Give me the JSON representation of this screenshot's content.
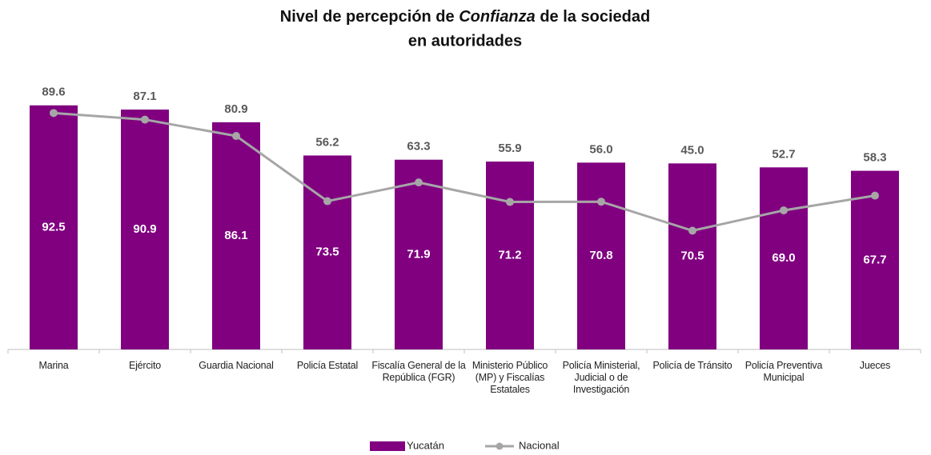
{
  "chart_data": {
    "type": "bar",
    "title": [
      "Nivel de percepción de",
      "Confianza",
      "de la sociedad",
      "en autoridades"
    ],
    "categories": [
      "Marina",
      "Ejército",
      "Guardia Nacional",
      "Policía Estatal",
      "Fiscalía General de la República (FGR)",
      "Ministerio Público (MP) y Fiscalías Estatales",
      "Policía Ministerial, Judicial o de Investigación",
      "Policía de Tránsito",
      "Policía Preventiva Municipal",
      "Jueces"
    ],
    "series": [
      {
        "name": "Yucatán",
        "type": "bar",
        "color": "#800080",
        "values": [
          92.5,
          90.9,
          86.1,
          73.5,
          71.9,
          71.2,
          70.8,
          70.5,
          69.0,
          67.7
        ],
        "value_labels": [
          "92.5",
          "90.9",
          "86.1",
          "73.5",
          "71.9",
          "71.2",
          "70.8",
          "70.5",
          "69.0",
          "67.7"
        ]
      },
      {
        "name": "Nacional",
        "type": "line",
        "color": "#a6a6a6",
        "values": [
          89.6,
          87.1,
          80.9,
          56.2,
          63.3,
          55.9,
          56.0,
          45.0,
          52.7,
          58.3
        ],
        "value_labels": [
          "89.6",
          "87.1",
          "80.9",
          "56.2",
          "63.3",
          "55.9",
          "56.0",
          "45.0",
          "52.7",
          "58.3"
        ]
      }
    ],
    "ylim": [
      0,
      100
    ],
    "legend": "bottom"
  }
}
